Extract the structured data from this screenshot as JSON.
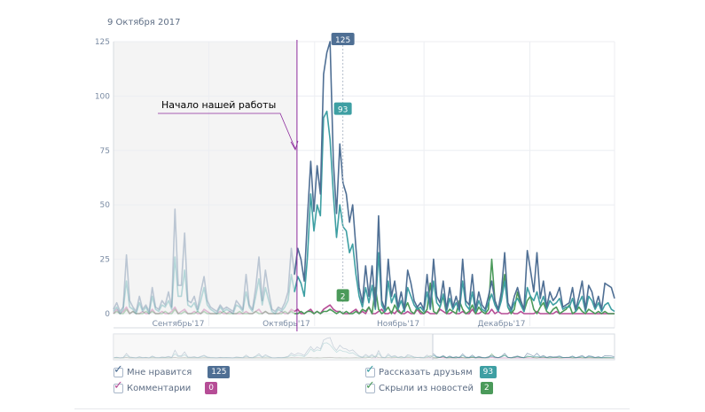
{
  "header": {
    "date": "9 Октября 2017"
  },
  "annotation": {
    "text": "Начало нашей работы"
  },
  "colors": {
    "likes": "#4f6f94",
    "comments": "#b64d96",
    "shares": "#3e9fa3",
    "hidden": "#4b9a5a",
    "marker": "#8c2a9c",
    "shade": "#f4f4f4",
    "grid": "#eceef2"
  },
  "legend": {
    "items": [
      {
        "key": "likes",
        "label": "Мне нравится",
        "count": "125",
        "checked": true
      },
      {
        "key": "comments",
        "label": "Комментарии",
        "count": "0",
        "checked": true
      },
      {
        "key": "shares",
        "label": "Рассказать друзьям",
        "count": "93",
        "checked": true
      },
      {
        "key": "hidden",
        "label": "Скрыли из новостей",
        "count": "2",
        "checked": true
      }
    ]
  },
  "chart_data": {
    "type": "line",
    "x_start": "2017-08-05",
    "x_end": "2017-12-25",
    "selected_date": "2017-10-09",
    "work_start_date": "2017-09-26",
    "ylim": [
      0,
      125
    ],
    "yticks": [
      0,
      25,
      50,
      75,
      100,
      125
    ],
    "xticks": [
      {
        "date": "2017-09-01",
        "label": "Сентябрь'17"
      },
      {
        "date": "2017-10-01",
        "label": "Октябрь'17"
      },
      {
        "date": "2017-11-01",
        "label": "Ноябрь'17"
      },
      {
        "date": "2017-12-01",
        "label": "Декабрь'17"
      }
    ],
    "grid": true,
    "tooltips": [
      {
        "series": "likes",
        "value": "125"
      },
      {
        "series": "shares",
        "value": "93"
      },
      {
        "series": "hidden",
        "value": "2"
      }
    ],
    "series": [
      {
        "key": "likes",
        "name": "Мне нравится",
        "values": [
          2,
          5,
          1,
          3,
          27,
          6,
          3,
          1,
          8,
          2,
          4,
          1,
          12,
          3,
          2,
          6,
          4,
          10,
          3,
          48,
          13,
          13,
          37,
          6,
          5,
          8,
          2,
          10,
          17,
          6,
          3,
          2,
          1,
          4,
          2,
          3,
          2,
          1,
          6,
          4,
          2,
          18,
          4,
          2,
          12,
          26,
          6,
          20,
          10,
          2,
          1,
          3,
          2,
          5,
          10,
          30,
          18,
          30,
          25,
          15,
          44,
          70,
          47,
          68,
          55,
          110,
          120,
          125,
          70,
          46,
          78,
          60,
          55,
          42,
          50,
          30,
          12,
          5,
          22,
          8,
          22,
          3,
          45,
          6,
          2,
          25,
          8,
          15,
          3,
          10,
          2,
          20,
          14,
          6,
          3,
          5,
          2,
          18,
          3,
          25,
          8,
          5,
          15,
          2,
          12,
          3,
          8,
          2,
          25,
          6,
          4,
          18,
          2,
          10,
          4,
          2,
          8,
          15,
          6,
          2,
          10,
          28,
          5,
          2,
          8,
          12,
          6,
          2,
          29,
          20,
          10,
          28,
          7,
          15,
          3,
          10,
          6,
          8,
          12,
          3,
          4,
          5,
          12,
          2,
          8,
          15,
          2,
          13,
          10,
          3,
          8,
          2,
          14,
          13,
          12,
          7
        ]
      },
      {
        "key": "comments",
        "name": "Комментарии",
        "values": [
          0,
          2,
          0,
          1,
          3,
          0,
          1,
          0,
          0,
          1,
          0,
          0,
          2,
          0,
          0,
          1,
          0,
          0,
          1,
          3,
          0,
          1,
          2,
          0,
          0,
          1,
          0,
          0,
          2,
          1,
          0,
          0,
          0,
          1,
          0,
          0,
          1,
          0,
          0,
          0,
          0,
          1,
          0,
          0,
          1,
          2,
          0,
          1,
          0,
          0,
          0,
          0,
          1,
          0,
          0,
          2,
          1,
          2,
          0,
          0,
          1,
          2,
          0,
          1,
          0,
          2,
          3,
          4,
          2,
          1,
          1,
          0,
          0,
          0,
          1,
          2,
          0,
          1,
          0,
          3,
          0,
          0,
          1,
          2,
          0,
          0,
          1,
          0,
          2,
          0,
          0,
          1,
          0,
          0,
          2,
          0,
          0,
          1,
          0,
          0,
          0,
          2,
          1,
          0,
          0,
          1,
          0,
          0,
          1,
          0,
          0,
          2,
          0,
          0,
          1,
          0,
          0,
          2,
          0,
          1,
          0,
          0,
          0,
          1,
          0,
          0,
          1,
          0,
          0,
          0,
          0,
          1,
          0,
          0,
          0,
          0,
          0,
          1,
          0,
          0,
          0,
          0,
          0,
          0,
          0,
          0,
          0,
          0,
          0,
          0,
          0,
          0,
          0,
          0,
          0,
          0
        ]
      },
      {
        "key": "shares",
        "name": "Рассказать друзьям",
        "values": [
          1,
          3,
          0,
          2,
          15,
          3,
          2,
          0,
          5,
          1,
          3,
          0,
          8,
          2,
          1,
          4,
          3,
          6,
          2,
          26,
          8,
          8,
          20,
          4,
          3,
          5,
          1,
          6,
          12,
          4,
          2,
          1,
          0,
          3,
          1,
          2,
          1,
          0,
          4,
          3,
          1,
          10,
          3,
          1,
          8,
          16,
          4,
          12,
          6,
          1,
          0,
          2,
          1,
          3,
          6,
          18,
          10,
          17,
          14,
          8,
          26,
          55,
          38,
          50,
          45,
          90,
          93,
          80,
          55,
          35,
          50,
          40,
          38,
          28,
          32,
          18,
          8,
          3,
          12,
          5,
          13,
          2,
          28,
          4,
          1,
          15,
          5,
          9,
          2,
          6,
          1,
          12,
          8,
          4,
          2,
          3,
          1,
          10,
          2,
          15,
          5,
          3,
          9,
          1,
          7,
          2,
          5,
          1,
          15,
          4,
          2,
          10,
          1,
          6,
          2,
          1,
          5,
          9,
          4,
          1,
          6,
          15,
          3,
          1,
          5,
          7,
          4,
          1,
          12,
          8,
          6,
          10,
          4,
          8,
          2,
          6,
          4,
          5,
          7,
          2,
          3,
          3,
          7,
          1,
          5,
          8,
          1,
          8,
          6,
          2,
          5,
          1,
          4,
          5,
          2,
          1
        ]
      },
      {
        "key": "hidden",
        "name": "Скрыли из новостей",
        "values": [
          0,
          1,
          0,
          0,
          2,
          0,
          1,
          0,
          0,
          0,
          1,
          0,
          1,
          0,
          0,
          0,
          1,
          0,
          0,
          2,
          0,
          0,
          1,
          0,
          0,
          0,
          1,
          0,
          1,
          0,
          0,
          0,
          0,
          0,
          1,
          0,
          0,
          0,
          0,
          1,
          0,
          0,
          0,
          0,
          1,
          0,
          0,
          1,
          0,
          0,
          0,
          0,
          0,
          1,
          0,
          1,
          0,
          0,
          1,
          0,
          1,
          1,
          0,
          1,
          0,
          1,
          1,
          2,
          1,
          0,
          1,
          0,
          1,
          0,
          0,
          1,
          0,
          2,
          1,
          3,
          0,
          12,
          2,
          0,
          1,
          3,
          0,
          4,
          1,
          0,
          2,
          5,
          1,
          0,
          3,
          1,
          0,
          2,
          14,
          1,
          0,
          3,
          8,
          0,
          2,
          1,
          0,
          6,
          2,
          0,
          1,
          4,
          0,
          3,
          1,
          0,
          2,
          25,
          6,
          2,
          8,
          18,
          3,
          0,
          2,
          10,
          4,
          1,
          6,
          8,
          2,
          0,
          3,
          5,
          1,
          0,
          2,
          3,
          0,
          1,
          2,
          4,
          0,
          1,
          3,
          1,
          0,
          2,
          1,
          0,
          1,
          0,
          1,
          0,
          0,
          0
        ]
      }
    ]
  }
}
